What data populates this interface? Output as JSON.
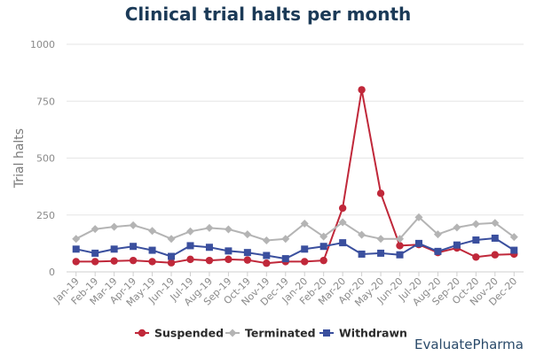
{
  "title": "Clinical trial halts per month",
  "brand": "EvaluatePharma",
  "chart_data": {
    "type": "line",
    "title": "Clinical trial halts per month",
    "xlabel": "",
    "ylabel": "Trial halts",
    "ylim": [
      0,
      1000
    ],
    "yticks": [
      0,
      250,
      500,
      750,
      1000
    ],
    "grid": true,
    "legend_position": "bottom",
    "categories": [
      "Jan-19",
      "Feb-19",
      "Mar-19",
      "Apr-19",
      "May-19",
      "Jun-19",
      "Jul-19",
      "Aug-19",
      "Sep-19",
      "Oct-19",
      "Nov-19",
      "Dec-19",
      "Jan-20",
      "Feb-20",
      "Mar-20",
      "Apr-20",
      "May-20",
      "Jun-20",
      "Jul-20",
      "Aug-20",
      "Sep-20",
      "Oct-20",
      "Nov-20",
      "Dec-20"
    ],
    "series": [
      {
        "name": "Suspended",
        "color": "#c0283a",
        "marker": "circle",
        "values": [
          45,
          45,
          48,
          50,
          45,
          40,
          55,
          50,
          55,
          52,
          38,
          45,
          45,
          50,
          280,
          800,
          345,
          115,
          120,
          85,
          105,
          65,
          75,
          78
        ]
      },
      {
        "name": "Terminated",
        "color": "#b4b4b4",
        "marker": "diamond",
        "values": [
          145,
          188,
          198,
          205,
          180,
          145,
          178,
          193,
          187,
          165,
          138,
          145,
          212,
          155,
          218,
          163,
          145,
          145,
          240,
          165,
          195,
          210,
          215,
          153
        ]
      },
      {
        "name": "Withdrawn",
        "color": "#3a4f9e",
        "marker": "square",
        "values": [
          100,
          82,
          100,
          112,
          95,
          68,
          115,
          108,
          92,
          85,
          72,
          58,
          100,
          112,
          128,
          78,
          82,
          75,
          125,
          90,
          118,
          140,
          148,
          95
        ]
      }
    ]
  }
}
